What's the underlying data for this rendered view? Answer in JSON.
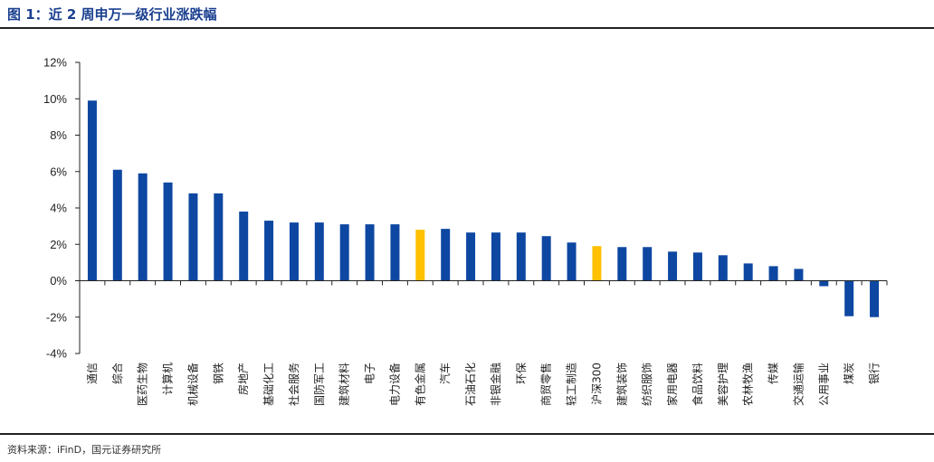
{
  "header": {
    "title": "图 1：近 2 周申万一级行业涨跌幅"
  },
  "footer": {
    "source": "资料来源：iFinD，国元证券研究所"
  },
  "colors": {
    "title": "#1a3f8f",
    "bar_default": "#0d47a1",
    "bar_highlight": "#ffc000",
    "axis": "#222222"
  },
  "chart_data": {
    "type": "bar",
    "title": "近 2 周申万一级行业涨跌幅",
    "xlabel": "",
    "ylabel": "",
    "ylim": [
      -4,
      12
    ],
    "yticks": [
      -4,
      -2,
      0,
      2,
      4,
      6,
      8,
      10,
      12
    ],
    "ytick_labels": [
      "-4%",
      "-2%",
      "0%",
      "2%",
      "4%",
      "6%",
      "8%",
      "10%",
      "12%"
    ],
    "grid": false,
    "categories": [
      "通信",
      "综合",
      "医药生物",
      "计算机",
      "机械设备",
      "钢铁",
      "房地产",
      "基础化工",
      "社会服务",
      "国防军工",
      "建筑材料",
      "电子",
      "电力设备",
      "有色金属",
      "汽车",
      "石油石化",
      "非银金融",
      "环保",
      "商贸零售",
      "轻工制造",
      "沪深300",
      "建筑装饰",
      "纺织服饰",
      "家用电器",
      "食品饮料",
      "美容护理",
      "农林牧渔",
      "传媒",
      "交通运输",
      "公用事业",
      "煤炭",
      "银行"
    ],
    "values": [
      9.9,
      6.1,
      5.9,
      5.4,
      4.8,
      4.8,
      3.8,
      3.3,
      3.2,
      3.2,
      3.1,
      3.1,
      3.1,
      2.8,
      2.85,
      2.65,
      2.65,
      2.65,
      2.45,
      2.1,
      1.9,
      1.85,
      1.85,
      1.6,
      1.55,
      1.4,
      0.95,
      0.8,
      0.65,
      -0.3,
      -1.95,
      -2.0
    ],
    "highlight": [
      "有色金属",
      "沪深300"
    ]
  }
}
